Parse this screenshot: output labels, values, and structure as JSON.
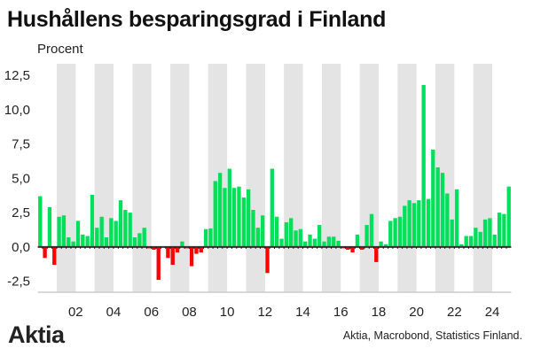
{
  "header": {
    "title": "Hushållens besparingsgrad i Finland",
    "unit_label": "Procent"
  },
  "footer": {
    "logo": "Aktia",
    "source": "Aktia, Macrobond, Statistics Finland."
  },
  "colors": {
    "positive": "#00e05a",
    "negative": "#ff0000",
    "band": "#e4e4e4",
    "baseline": "#333333",
    "axis": "#cccccc"
  },
  "chart_data": {
    "type": "bar",
    "title": "Hushållens besparingsgrad i Finland",
    "xlabel": "",
    "ylabel": "Procent",
    "frequency": "quarterly",
    "x_start": "2000Q1",
    "x_end": "2024Q4",
    "xlim": [
      2000,
      2025
    ],
    "ylim": [
      -3.3,
      13.35
    ],
    "yticks": [
      12.5,
      10.0,
      7.5,
      5.0,
      2.5,
      0.0,
      -2.5
    ],
    "ytick_labels": [
      "12,5",
      "10,0",
      "7,5",
      "5,0",
      "2,5",
      "0,0",
      "-2,5"
    ],
    "xticks": [
      2002,
      2004,
      2006,
      2008,
      2010,
      2012,
      2014,
      2016,
      2018,
      2020,
      2022,
      2024
    ],
    "xtick_labels": [
      "02",
      "04",
      "06",
      "08",
      "10",
      "12",
      "14",
      "16",
      "18",
      "20",
      "22",
      "24"
    ],
    "shaded_years": [
      2001,
      2003,
      2005,
      2007,
      2009,
      2011,
      2013,
      2015,
      2017,
      2019,
      2021,
      2023
    ],
    "grid": false,
    "legend": "none",
    "values": [
      3.7,
      -0.8,
      2.9,
      -1.3,
      2.2,
      2.3,
      0.7,
      0.4,
      1.9,
      0.9,
      0.8,
      3.8,
      1.4,
      2.2,
      0.7,
      2.1,
      1.9,
      3.4,
      2.7,
      2.5,
      0.7,
      1.0,
      1.4,
      -0.1,
      -0.2,
      -2.4,
      0.0,
      -0.8,
      -1.3,
      -0.4,
      0.4,
      -0.1,
      -1.4,
      -0.5,
      -0.4,
      1.3,
      1.35,
      4.8,
      5.4,
      4.3,
      5.7,
      4.3,
      4.4,
      3.6,
      4.2,
      2.7,
      1.4,
      2.3,
      -1.9,
      5.7,
      2.2,
      0.6,
      1.8,
      2.1,
      1.2,
      1.3,
      0.4,
      0.9,
      0.6,
      1.6,
      0.4,
      0.75,
      0.75,
      0.45,
      -0.1,
      -0.2,
      -0.4,
      0.9,
      -0.2,
      1.6,
      2.4,
      -1.1,
      0.4,
      0.2,
      1.9,
      2.1,
      2.2,
      3.0,
      3.4,
      3.2,
      3.4,
      11.8,
      3.5,
      7.1,
      5.8,
      5.4,
      3.9,
      2.0,
      4.2,
      0.2,
      0.8,
      0.8,
      1.4,
      1.1,
      2.0,
      2.1,
      0.9,
      2.5,
      2.4,
      4.4
    ]
  }
}
